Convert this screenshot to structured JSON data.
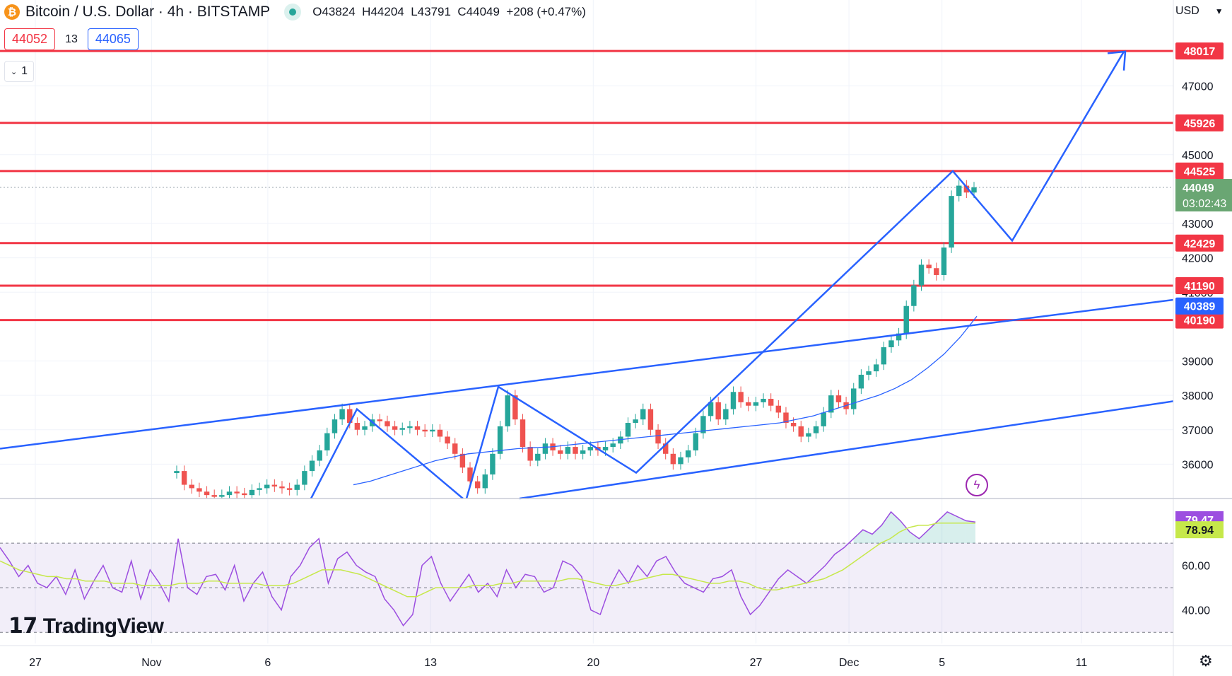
{
  "header": {
    "symbol_title": "Bitcoin / U.S. Dollar · 4h · BITSTAMP",
    "ohlc": {
      "open_label": "O",
      "open": "43824",
      "high_label": "H",
      "high": "44204",
      "low_label": "L",
      "low": "43791",
      "close_label": "C",
      "close": "44049",
      "change": "+208 (+0.47%)"
    },
    "bid": "44052",
    "spread": "13",
    "ask": "44065",
    "collapse_label": "1",
    "currency": "USD"
  },
  "brand": {
    "logo_text": "TradingView"
  },
  "colors": {
    "level_line": "#f23645",
    "trend_line": "#2962ff",
    "candle_up": "#26a69a",
    "candle_down": "#ef5350",
    "ma_line": "#2962ff",
    "rsi_line": "#9c4ee0",
    "rsi_ma": "#c6e84a",
    "price_tag": "#6aa673"
  },
  "chart_data": {
    "type": "candlestick",
    "timeframe": "4h",
    "x_axis": {
      "ticks": [
        {
          "label": "27",
          "date": "2023-10-27"
        },
        {
          "label": "Nov",
          "date": "2023-11-01"
        },
        {
          "label": "6",
          "date": "2023-11-06"
        },
        {
          "label": "13",
          "date": "2023-11-13"
        },
        {
          "label": "20",
          "date": "2023-11-20"
        },
        {
          "label": "27",
          "date": "2023-11-27"
        },
        {
          "label": "Dec",
          "date": "2023-12-01"
        },
        {
          "label": "5",
          "date": "2023-12-05"
        },
        {
          "label": "11",
          "date": "2023-12-11"
        }
      ]
    },
    "y_axis": {
      "range": [
        35000,
        49500
      ],
      "ticks": [
        "36000",
        "37000",
        "38000",
        "39000",
        "41000",
        "42000",
        "43000",
        "45000",
        "47000"
      ]
    },
    "horizontal_levels": [
      "48017",
      "45926",
      "44525",
      "42429",
      "41190",
      "40190"
    ],
    "trend_channel_tag": "40389",
    "last_price": {
      "value": "44049",
      "countdown": "03:02:43"
    },
    "candles_close": [
      35800,
      35400,
      35300,
      35200,
      35100,
      35050,
      35100,
      35200,
      35150,
      35100,
      35250,
      35300,
      35400,
      35350,
      35300,
      35250,
      35400,
      35800,
      36100,
      36400,
      36900,
      37300,
      37600,
      37200,
      37000,
      37100,
      37300,
      37250,
      37100,
      37000,
      37050,
      37100,
      37000,
      36950,
      37000,
      36800,
      36600,
      36300,
      35900,
      35500,
      35300,
      35700,
      36300,
      37100,
      38000,
      37300,
      36500,
      36100,
      36300,
      36600,
      36400,
      36300,
      36500,
      36300,
      36400,
      36500,
      36400,
      36500,
      36600,
      36800,
      37200,
      37300,
      37600,
      37000,
      36600,
      36300,
      36000,
      36200,
      36400,
      36900,
      37400,
      37800,
      37300,
      37600,
      38100,
      37800,
      37700,
      37800,
      37900,
      37700,
      37500,
      37200,
      37100,
      36800,
      36900,
      37100,
      37500,
      38000,
      37800,
      37600,
      38200,
      38600,
      38700,
      38900,
      39400,
      39600,
      39800,
      40600,
      41200,
      41800,
      41700,
      41500,
      42300,
      43800,
      44100,
      43900,
      44049
    ],
    "moving_average": [
      35400,
      35500,
      35650,
      35800,
      35950,
      36100,
      36200,
      36300,
      36350,
      36400,
      36450,
      36480,
      36500,
      36550,
      36600,
      36650,
      36700,
      36750,
      36800,
      36850,
      36900,
      36950,
      37000,
      37050,
      37100,
      37150,
      37200,
      37300,
      37400,
      37550,
      37700,
      37850,
      38000,
      38200,
      38450,
      38800,
      39200,
      39700,
      40300
    ],
    "rsi": {
      "ticks": [
        "40.00",
        "60.00"
      ],
      "levels": [
        30,
        50,
        70
      ],
      "rsi_value": "79.47",
      "ma_value": "78.94",
      "values": [
        68,
        62,
        55,
        60,
        52,
        50,
        55,
        47,
        58,
        45,
        53,
        60,
        50,
        48,
        62,
        45,
        58,
        52,
        44,
        72,
        50,
        47,
        55,
        56,
        49,
        60,
        44,
        52,
        57,
        46,
        40,
        55,
        60,
        68,
        72,
        52,
        63,
        66,
        60,
        57,
        55,
        45,
        40,
        33,
        38,
        60,
        64,
        52,
        44,
        50,
        56,
        48,
        52,
        46,
        58,
        50,
        56,
        55,
        48,
        50,
        62,
        60,
        55,
        40,
        38,
        50,
        58,
        52,
        60,
        55,
        62,
        64,
        57,
        52,
        50,
        48,
        54,
        55,
        58,
        46,
        38,
        42,
        48,
        54,
        58,
        55,
        52,
        56,
        60,
        65,
        68,
        72,
        76,
        74,
        78,
        84,
        80,
        75,
        72,
        76,
        80,
        84,
        82,
        80,
        79.47
      ],
      "ma_values": [
        62,
        60,
        58,
        57,
        56,
        55,
        55,
        54,
        54,
        53,
        53,
        53,
        52,
        52,
        52,
        51,
        51,
        51,
        51,
        52,
        52,
        52,
        53,
        53,
        52,
        52,
        52,
        52,
        51,
        51,
        51,
        52,
        54,
        56,
        58,
        58,
        58,
        57,
        56,
        54,
        52,
        50,
        48,
        46,
        46,
        48,
        50,
        50,
        50,
        50,
        51,
        51,
        51,
        52,
        52,
        53,
        53,
        53,
        53,
        53,
        54,
        54,
        53,
        52,
        51,
        51,
        52,
        53,
        54,
        55,
        56,
        56,
        55,
        54,
        53,
        52,
        52,
        53,
        53,
        52,
        50,
        49,
        49,
        50,
        51,
        52,
        53,
        54,
        56,
        58,
        61,
        64,
        67,
        70,
        72,
        75,
        77,
        78,
        78,
        79,
        79,
        79,
        79,
        78.94
      ]
    }
  }
}
